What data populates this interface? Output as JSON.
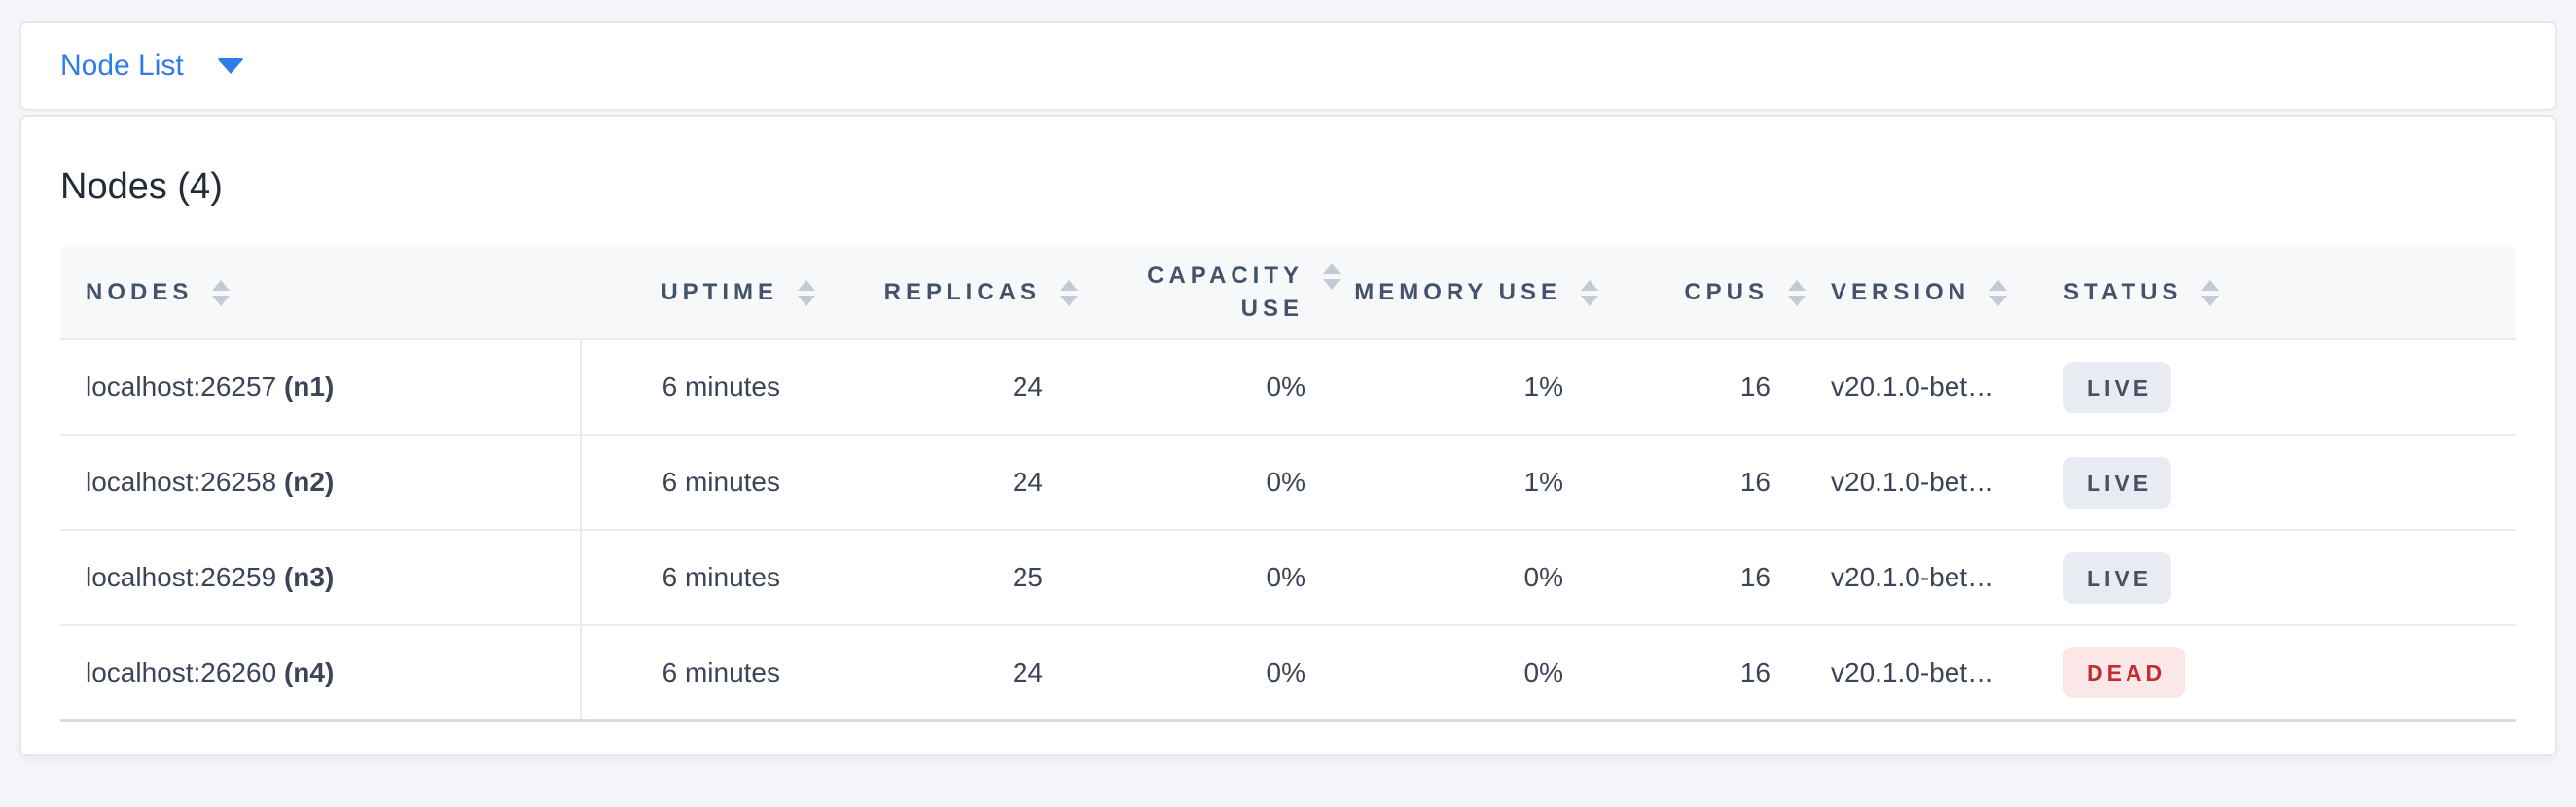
{
  "toolbar": {
    "dropdown_label": "Node List"
  },
  "panel": {
    "title": "Nodes (4)"
  },
  "table": {
    "columns": [
      {
        "key": "node",
        "label": "NODES",
        "align": "left"
      },
      {
        "key": "uptime",
        "label": "UPTIME",
        "align": "right"
      },
      {
        "key": "replicas",
        "label": "REPLICAS",
        "align": "right"
      },
      {
        "key": "capacity_use",
        "label": "CAPACITY USE",
        "align": "right",
        "wrap": true
      },
      {
        "key": "memory_use",
        "label": "MEMORY USE",
        "align": "right"
      },
      {
        "key": "cpus",
        "label": "CPUS",
        "align": "right"
      },
      {
        "key": "version",
        "label": "VERSION",
        "align": "left"
      },
      {
        "key": "status",
        "label": "STATUS",
        "align": "left"
      }
    ],
    "rows": [
      {
        "address": "localhost:26257",
        "id_label": "(n1)",
        "uptime": "6 minutes",
        "replicas": "24",
        "capacity_use": "0%",
        "memory_use": "1%",
        "cpus": "16",
        "version": "v20.1.0-bet…",
        "status": "LIVE"
      },
      {
        "address": "localhost:26258",
        "id_label": "(n2)",
        "uptime": "6 minutes",
        "replicas": "24",
        "capacity_use": "0%",
        "memory_use": "1%",
        "cpus": "16",
        "version": "v20.1.0-bet…",
        "status": "LIVE"
      },
      {
        "address": "localhost:26259",
        "id_label": "(n3)",
        "uptime": "6 minutes",
        "replicas": "25",
        "capacity_use": "0%",
        "memory_use": "0%",
        "cpus": "16",
        "version": "v20.1.0-bet…",
        "status": "LIVE"
      },
      {
        "address": "localhost:26260",
        "id_label": "(n4)",
        "uptime": "6 minutes",
        "replicas": "24",
        "capacity_use": "0%",
        "memory_use": "0%",
        "cpus": "16",
        "version": "v20.1.0-bet…",
        "status": "DEAD"
      }
    ]
  },
  "colors": {
    "accent_blue": "#2f7ce8",
    "page_background": "#f4f5f9",
    "header_text": "#44526b",
    "cell_text": "#3c4558",
    "live_badge_bg": "#e8ebf2",
    "live_badge_text": "#475166",
    "dead_badge_bg": "#fbe7e8",
    "dead_badge_text": "#bf2e31"
  }
}
